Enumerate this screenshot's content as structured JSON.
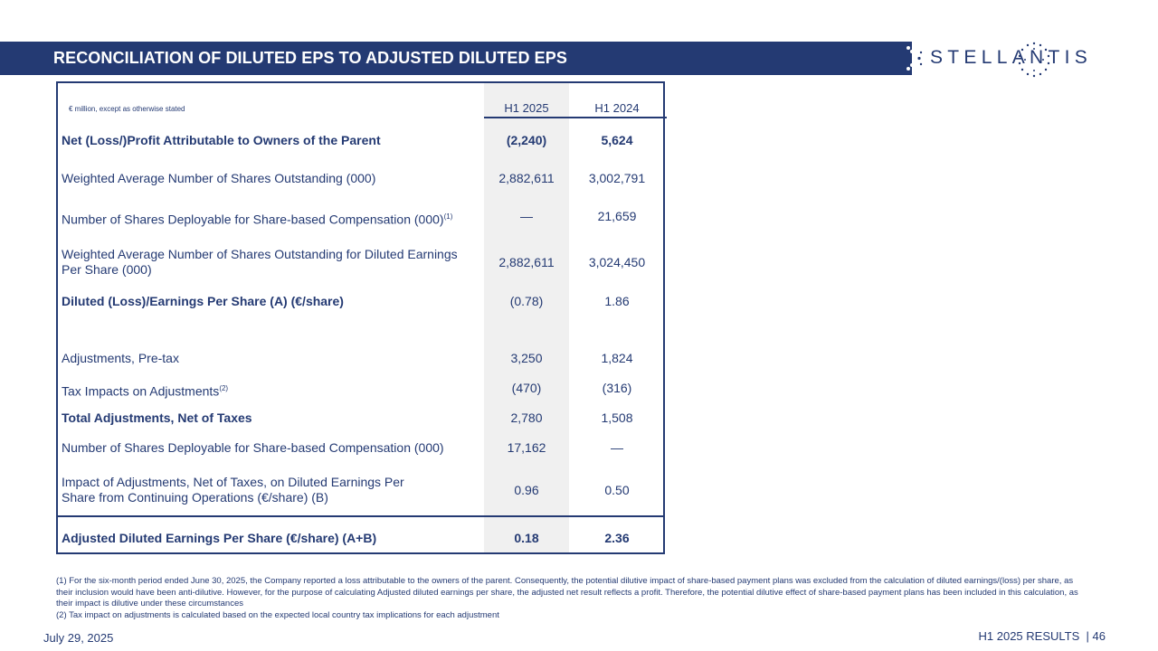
{
  "header": {
    "title": "RECONCILIATION OF DILUTED EPS TO ADJUSTED DILUTED EPS",
    "logo_text": "STELLANTIS"
  },
  "table": {
    "units": "€ million, except as otherwise stated",
    "columns": [
      "H1 2025",
      "H1 2024"
    ],
    "rows": [
      {
        "label": "Net (Loss/)Profit Attributable to Owners of the Parent",
        "sup": "",
        "h1_2025": "(2,240)",
        "h1_2024": "5,624",
        "bold": true
      },
      {
        "label": "Weighted Average Number of Shares Outstanding (000)",
        "sup": "",
        "h1_2025": "2,882,611",
        "h1_2024": "3,002,791",
        "bold": false
      },
      {
        "label": "Number of Shares Deployable for Share-based Compensation (000)",
        "sup": "(1)",
        "h1_2025": "—",
        "h1_2024": "21,659",
        "bold": false
      },
      {
        "label": "Weighted Average Number of Shares Outstanding for Diluted Earnings Per Share (000)",
        "sup": "",
        "h1_2025": "2,882,611",
        "h1_2024": "3,024,450",
        "bold": false
      },
      {
        "label": "Diluted (Loss)/Earnings Per Share (A) (€/share)",
        "sup": "",
        "h1_2025": "(0.78)",
        "h1_2024": "1.86",
        "bold": true
      },
      {
        "label": "Adjustments, Pre-tax",
        "sup": "",
        "h1_2025": "3,250",
        "h1_2024": "1,824",
        "bold": false
      },
      {
        "label": "Tax Impacts on Adjustments",
        "sup": "(2)",
        "h1_2025": "(470)",
        "h1_2024": "(316)",
        "bold": false
      },
      {
        "label": "Total Adjustments, Net of Taxes",
        "sup": "",
        "h1_2025": "2,780",
        "h1_2024": "1,508",
        "bold": true
      },
      {
        "label": "Number of Shares Deployable for Share-based Compensation (000)",
        "sup": "",
        "h1_2025": "17,162",
        "h1_2024": "—",
        "bold": false
      },
      {
        "label": "Impact of Adjustments, Net of Taxes, on Diluted Earnings Per Share from Continuing Operations (€/share) (B)",
        "sup": "",
        "h1_2025": "0.96",
        "h1_2024": "0.50",
        "bold": false
      },
      {
        "label": "Adjusted Diluted Earnings Per Share (€/share) (A+B)",
        "sup": "",
        "h1_2025": "0.18",
        "h1_2024": "2.36",
        "bold": true
      }
    ]
  },
  "footnotes": {
    "note1": "(1) For the six-month period ended June 30, 2025, the Company reported a loss attributable to the owners of the parent. Consequently, the potential dilutive impact of share-based payment plans was excluded from the calculation of diluted earnings/(loss) per share, as their inclusion would have been anti-dilutive. However, for the purpose of calculating Adjusted diluted earnings per share, the adjusted net result reflects a profit. Therefore, the potential dilutive effect of share-based payment plans has been included in this calculation, as their impact is dilutive under these circumstances",
    "note2": "(2) Tax impact on adjustments is calculated based on the expected local country tax implications for each adjustment"
  },
  "footer": {
    "date": "July 29, 2025",
    "results": "H1 2025 RESULTS",
    "separator": "|",
    "page": "46"
  },
  "colors": {
    "brand": "#243a73",
    "shade": "#f0f0f0"
  }
}
